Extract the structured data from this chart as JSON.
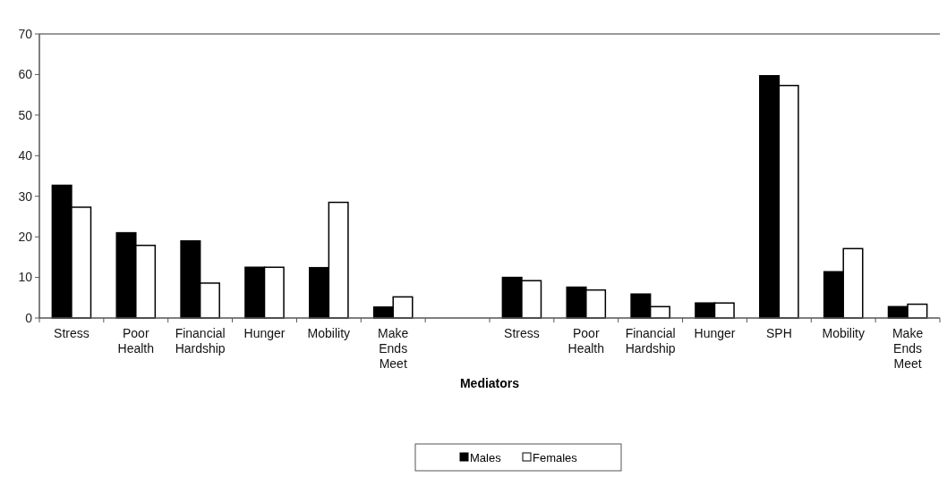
{
  "chart_data": {
    "type": "bar",
    "xlabel": "Mediators",
    "categories": [
      "Stress",
      "Poor Health",
      "Financial Hardship",
      "Hunger",
      "Mobility",
      "Make Ends Meet",
      null,
      "Stress",
      "Poor Health",
      "Financial Hardship",
      "Hunger",
      "SPH",
      "Mobility",
      "Make Ends Meet"
    ],
    "series": [
      {
        "name": "Males",
        "color": "#000000",
        "values": [
          32.7,
          21.0,
          19.0,
          12.5,
          12.4,
          2.7,
          null,
          10.0,
          7.6,
          5.9,
          3.7,
          59.7,
          11.4,
          2.8
        ]
      },
      {
        "name": "Females",
        "color": "#ffffff",
        "values": [
          27.3,
          17.9,
          8.6,
          12.5,
          28.5,
          5.2,
          null,
          9.2,
          6.9,
          2.8,
          3.7,
          57.3,
          17.1,
          3.4
        ]
      }
    ],
    "ylim": [
      0,
      70
    ],
    "yticks": [
      0,
      10,
      20,
      30,
      40,
      50,
      60,
      70
    ],
    "grid": false,
    "legend": "bottom"
  }
}
